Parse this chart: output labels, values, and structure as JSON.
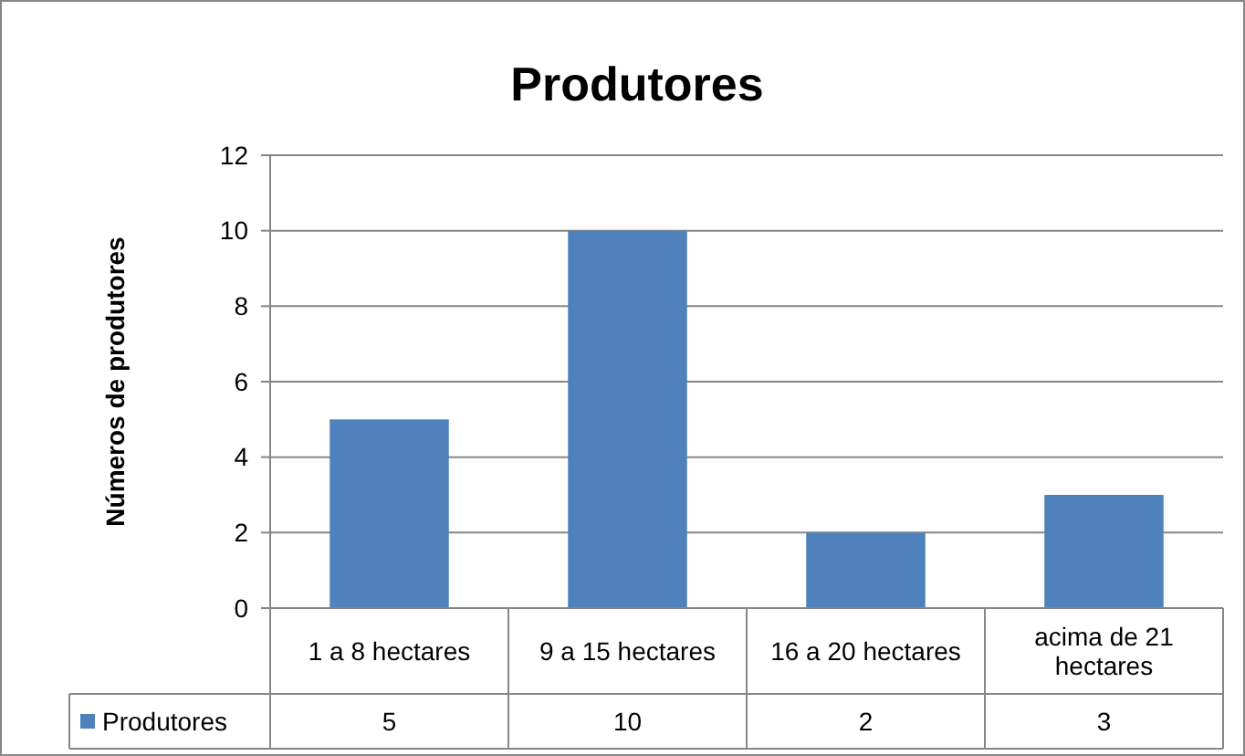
{
  "chart_data": {
    "type": "bar",
    "title": "Produtores",
    "ylabel": "Números de produtores",
    "categories": [
      "1 a 8 hectares",
      "9 a 15 hectares",
      "16 a 20 hectares",
      "acima de 21 hectares"
    ],
    "series": [
      {
        "name": "Produtores",
        "color": "#4f81bd",
        "values": [
          5,
          10,
          2,
          3
        ]
      }
    ],
    "ylim": [
      0,
      12
    ],
    "yticks": [
      0,
      2,
      4,
      6,
      8,
      10,
      12
    ],
    "grid": "y",
    "legend": "bottom",
    "data_labels": true
  }
}
